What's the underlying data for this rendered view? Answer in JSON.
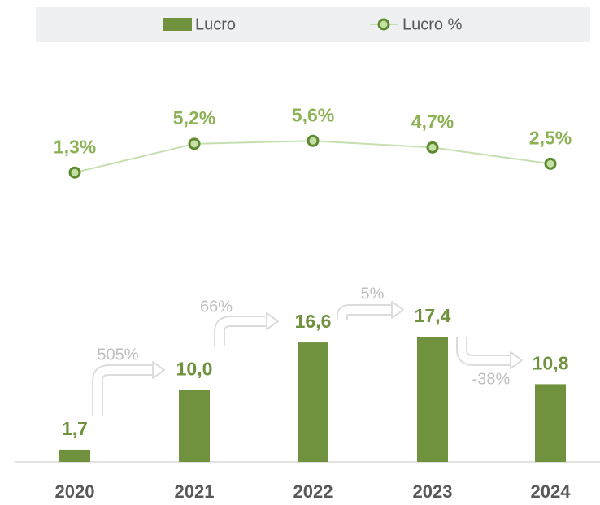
{
  "chart_data": {
    "type": "bar",
    "categories": [
      "2020",
      "2021",
      "2022",
      "2023",
      "2024"
    ],
    "series": [
      {
        "name": "Lucro",
        "type": "bar",
        "color": "#70923e",
        "values": [
          1.7,
          10.0,
          16.6,
          17.4,
          10.8
        ],
        "value_labels": [
          "1,7",
          "10,0",
          "16,6",
          "17,4",
          "10,8"
        ]
      },
      {
        "name": "Lucro %",
        "type": "line",
        "color": "#c6dfb0",
        "values": [
          1.3,
          5.2,
          5.6,
          4.7,
          2.5
        ],
        "value_labels": [
          "1,3%",
          "5,2%",
          "5,6%",
          "4,7%",
          "2,5%"
        ]
      }
    ],
    "growth": {
      "values": [
        505,
        66,
        5,
        -38
      ],
      "value_labels": [
        "505%",
        "66%",
        "5%",
        "-38%"
      ]
    },
    "legend": "top"
  }
}
